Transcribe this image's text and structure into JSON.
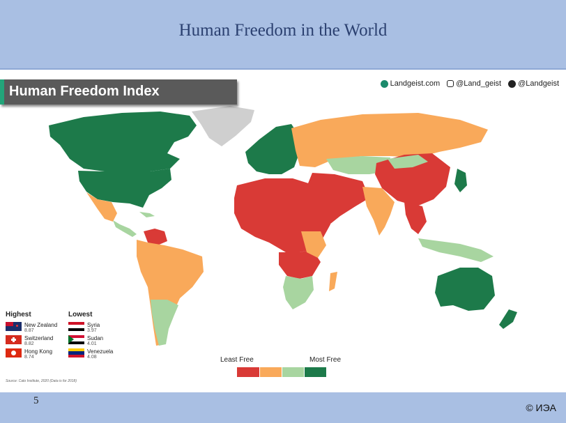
{
  "slide": {
    "title": "Human Freedom in the World",
    "page_number": "5",
    "copyright": "© ИЭА"
  },
  "map": {
    "title": "Human Freedom Index",
    "socials": [
      "Landgeist.com",
      "@Land_geist",
      "@Landgeist"
    ],
    "legend": {
      "low_label": "Least Free",
      "high_label": "Most Free",
      "colors": [
        "#d93a36",
        "#f9a95a",
        "#a8d5a0",
        "#1d7a4a"
      ]
    },
    "highest": {
      "heading": "Highest",
      "items": [
        {
          "country": "New Zealand",
          "score": "8.87"
        },
        {
          "country": "Switzerland",
          "score": "8.82"
        },
        {
          "country": "Hong Kong",
          "score": "8.74"
        }
      ]
    },
    "lowest": {
      "heading": "Lowest",
      "items": [
        {
          "country": "Syria",
          "score": "3.97"
        },
        {
          "country": "Sudan",
          "score": "4.01"
        },
        {
          "country": "Venezuela",
          "score": "4.08"
        }
      ]
    },
    "source": "Source: Cato Institute, 2020 (Data is for 2018)",
    "colors": {
      "least_free": "#d93a36",
      "low": "#f9a95a",
      "high": "#a8d5a0",
      "most_free": "#1d7a4a",
      "no_data": "#cfcfcf"
    }
  }
}
